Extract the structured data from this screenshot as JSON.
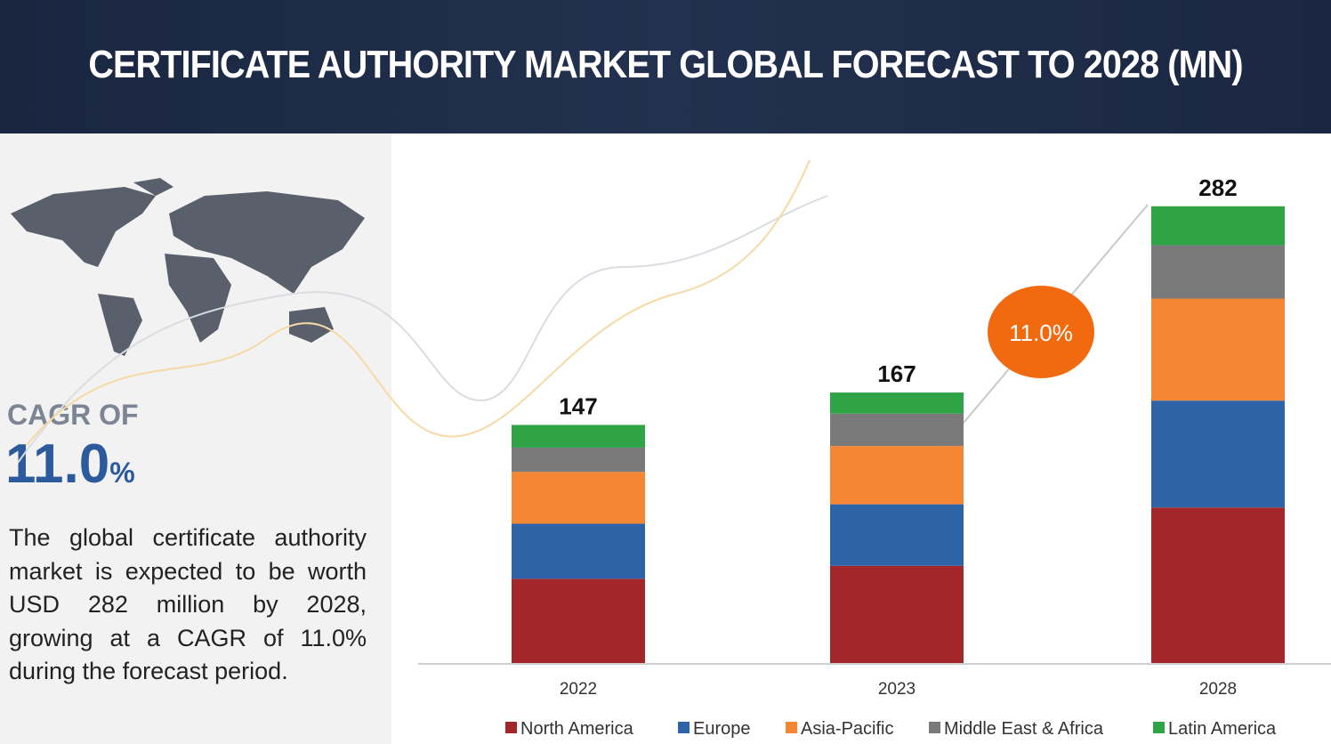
{
  "header": {
    "title": "CERTIFICATE AUTHORITY MARKET GLOBAL FORECAST TO 2028 (MN)"
  },
  "sidebar": {
    "cagr_label": "CAGR OF",
    "cagr_value": "11.0",
    "cagr_unit": "%",
    "description": "The global certificate authority market is expected to be worth USD 282 million by 2028, growing at a CAGR of 11.0% during the forecast period."
  },
  "chart_data": {
    "type": "stacked_bar",
    "categories": [
      "2022",
      "2023",
      "2028"
    ],
    "series": [
      {
        "name": "North America",
        "color": "#a3262a",
        "values": [
          52,
          60,
          96
        ]
      },
      {
        "name": "Europe",
        "color": "#2f63a8",
        "values": [
          34,
          38,
          66
        ]
      },
      {
        "name": "Asia-Pacific",
        "color": "#f58634",
        "values": [
          32,
          36,
          63
        ]
      },
      {
        "name": "Middle East & Africa",
        "color": "#7a7a7a",
        "values": [
          15,
          20,
          33
        ]
      },
      {
        "name": "Latin America",
        "color": "#2ea447",
        "values": [
          14,
          13,
          24
        ]
      }
    ],
    "totals": [
      147,
      167,
      282
    ],
    "annotation": "11.0%"
  }
}
